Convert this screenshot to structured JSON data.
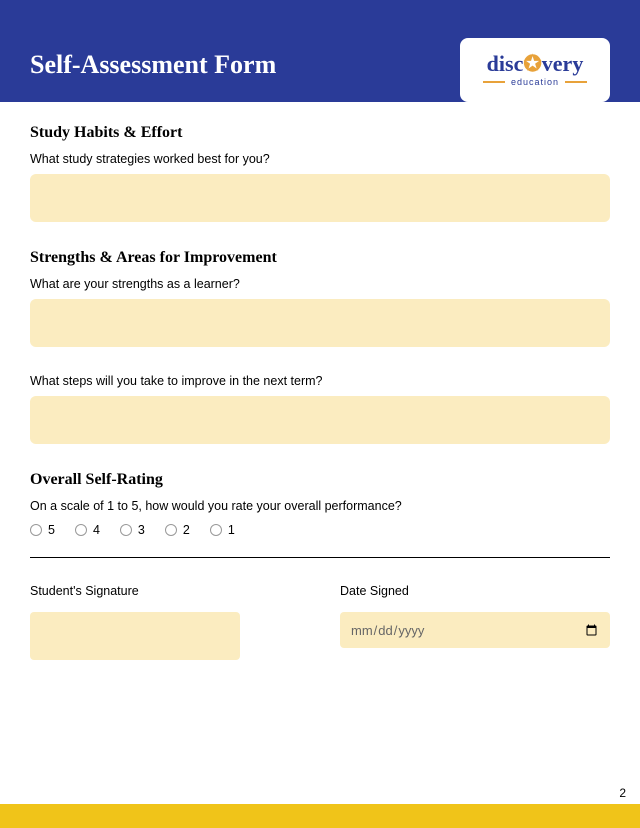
{
  "header": {
    "title": "Self-Assessment Form",
    "logo_main_pre": "disc",
    "logo_star": "✪",
    "logo_main_post": "very",
    "logo_sub": "education"
  },
  "sections": {
    "study": {
      "title": "Study Habits & Effort",
      "q1": "What study strategies worked best for you?"
    },
    "strengths": {
      "title": "Strengths & Areas for Improvement",
      "q1": "What are your strengths as a learner?",
      "q2": "What steps will you take to improve in the next term?"
    },
    "rating": {
      "title": "Overall Self-Rating",
      "q1": "On a scale of 1 to 5, how would you rate your overall performance?",
      "options": [
        "5",
        "4",
        "3",
        "2",
        "1"
      ]
    }
  },
  "signature": {
    "sig_label": "Student's Signature",
    "date_label": "Date Signed",
    "date_placeholder": "mm/dd/yyyy"
  },
  "page_number": "2",
  "colors": {
    "header_bg": "#2a3b98",
    "field_bg": "#fbecc0",
    "footer_bg": "#f0c419"
  }
}
